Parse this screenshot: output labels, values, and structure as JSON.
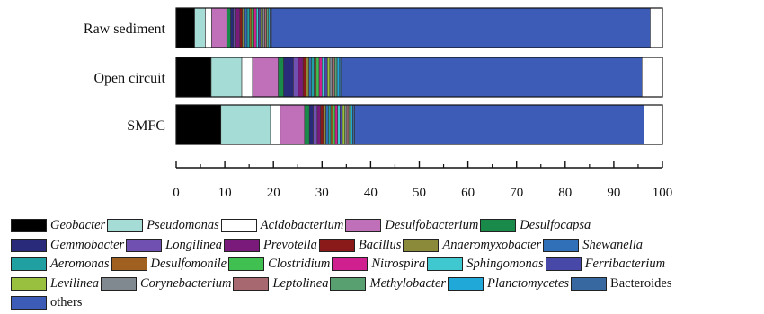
{
  "chart_data": {
    "type": "bar",
    "orientation": "horizontal",
    "stacked": true,
    "categories": [
      "Raw sediment",
      "Open circuit",
      "SMFC"
    ],
    "xlim": [
      0,
      100
    ],
    "xticks": [
      "0",
      "10",
      "20",
      "30",
      "40",
      "50",
      "60",
      "70",
      "80",
      "90",
      "100"
    ],
    "legend_position": "bottom",
    "series": [
      {
        "name": "Geobacter",
        "color": "#000000",
        "italic": true,
        "values": [
          3.8,
          7.2,
          9.2
        ]
      },
      {
        "name": "Pseudomonas",
        "color": "#a6dcd6",
        "italic": true,
        "values": [
          2.2,
          6.3,
          10.2
        ]
      },
      {
        "name": "Acidobacterium",
        "color": "#ffffff",
        "italic": true,
        "values": [
          1.3,
          2.2,
          2.0
        ]
      },
      {
        "name": "Desulfobacterium",
        "color": "#c070b8",
        "italic": true,
        "values": [
          3.1,
          5.3,
          5.0
        ]
      },
      {
        "name": "Desulfocapsa",
        "color": "#1a8a4a",
        "italic": true,
        "values": [
          0.8,
          1.1,
          1.0
        ]
      },
      {
        "name": "Gemmobacter",
        "color": "#2a2a7a",
        "italic": true,
        "values": [
          0.6,
          2.0,
          0.8
        ]
      },
      {
        "name": "Longilinea",
        "color": "#7050b0",
        "italic": true,
        "values": [
          0.5,
          1.0,
          0.8
        ]
      },
      {
        "name": "Prevotella",
        "color": "#7a1a7a",
        "italic": true,
        "values": [
          0.8,
          1.0,
          0.7
        ]
      },
      {
        "name": "Bacillus",
        "color": "#8a1a1a",
        "italic": true,
        "values": [
          0.5,
          0.6,
          0.6
        ]
      },
      {
        "name": "Anaeromyxobacter",
        "color": "#8a8a3a",
        "italic": true,
        "values": [
          0.5,
          0.6,
          0.5
        ]
      },
      {
        "name": "Shewanella",
        "color": "#3070b8",
        "italic": true,
        "values": [
          0.5,
          0.5,
          0.5
        ]
      },
      {
        "name": "Aeromonas",
        "color": "#20a0a0",
        "italic": true,
        "values": [
          0.5,
          0.6,
          0.5
        ]
      },
      {
        "name": "Desulfomonile",
        "color": "#a06020",
        "italic": true,
        "values": [
          0.4,
          0.4,
          0.4
        ]
      },
      {
        "name": "Clostridium",
        "color": "#40c050",
        "italic": true,
        "values": [
          0.5,
          0.6,
          0.5
        ]
      },
      {
        "name": "Nitrospira",
        "color": "#d02090",
        "italic": true,
        "values": [
          0.5,
          0.6,
          0.5
        ]
      },
      {
        "name": "Sphingomonas",
        "color": "#40c8d0",
        "italic": true,
        "values": [
          0.4,
          0.5,
          0.5
        ]
      },
      {
        "name": "Ferribacterium",
        "color": "#4848a8",
        "italic": true,
        "values": [
          0.5,
          0.6,
          0.5
        ]
      },
      {
        "name": "Levilinea",
        "color": "#9ac040",
        "italic": true,
        "values": [
          0.4,
          0.5,
          0.5
        ]
      },
      {
        "name": "Corynebacterium",
        "color": "#808890",
        "italic": true,
        "values": [
          0.4,
          0.5,
          0.4
        ]
      },
      {
        "name": "Leptolinea",
        "color": "#a86870",
        "italic": true,
        "values": [
          0.4,
          0.5,
          0.4
        ]
      },
      {
        "name": "Methylobacter",
        "color": "#58a070",
        "italic": true,
        "values": [
          0.4,
          0.5,
          0.4
        ]
      },
      {
        "name": "Planctomycetes",
        "color": "#20a8d8",
        "italic": true,
        "values": [
          0.3,
          0.5,
          0.4
        ]
      },
      {
        "name": "Bacteroides",
        "color": "#3868a0",
        "italic": false,
        "values": [
          0.3,
          0.4,
          0.4
        ]
      },
      {
        "name": "others",
        "color": "#3c5cb8",
        "italic": false,
        "values": [
          77.9,
          61.8,
          59.5
        ]
      }
    ]
  }
}
